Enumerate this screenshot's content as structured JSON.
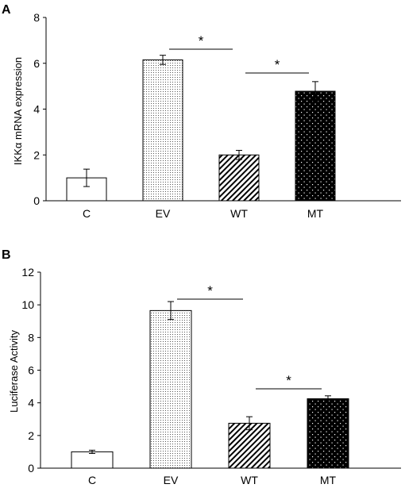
{
  "colors": {
    "ink": "#000000",
    "background": "#ffffff"
  },
  "chart_data": [
    {
      "type": "bar",
      "panel_label": "A",
      "title": "",
      "xlabel": "",
      "ylabel": "IKKα mRNA expression",
      "ylim": [
        0,
        8
      ],
      "yticks": [
        0,
        2,
        4,
        6,
        8
      ],
      "categories": [
        "C",
        "EV",
        "WT",
        "MT"
      ],
      "values": [
        1.0,
        6.15,
        2.0,
        4.78
      ],
      "errors": [
        0.38,
        0.2,
        0.2,
        0.42
      ],
      "fill_patterns": [
        "white",
        "fine-dots",
        "diagonal-hatch",
        "black-with-white-dots"
      ],
      "grid": false,
      "legend": "none",
      "annotations": [
        {
          "text": "*",
          "from": "EV",
          "to": "WT"
        },
        {
          "text": "*",
          "from": "WT",
          "to": "MT"
        }
      ]
    },
    {
      "type": "bar",
      "panel_label": "B",
      "title": "",
      "xlabel": "",
      "ylabel": "Luciferase Activity",
      "ylim": [
        0,
        12
      ],
      "yticks": [
        0,
        2,
        4,
        6,
        8,
        10,
        12
      ],
      "categories": [
        "C",
        "EV",
        "WT",
        "MT"
      ],
      "values": [
        1.0,
        9.65,
        2.75,
        4.25
      ],
      "errors": [
        0.1,
        0.55,
        0.4,
        0.18
      ],
      "fill_patterns": [
        "white",
        "fine-dots",
        "diagonal-hatch",
        "black-with-white-dots"
      ],
      "grid": false,
      "legend": "none",
      "annotations": [
        {
          "text": "*",
          "from": "EV",
          "to": "WT"
        },
        {
          "text": "*",
          "from": "WT",
          "to": "MT"
        }
      ]
    }
  ]
}
